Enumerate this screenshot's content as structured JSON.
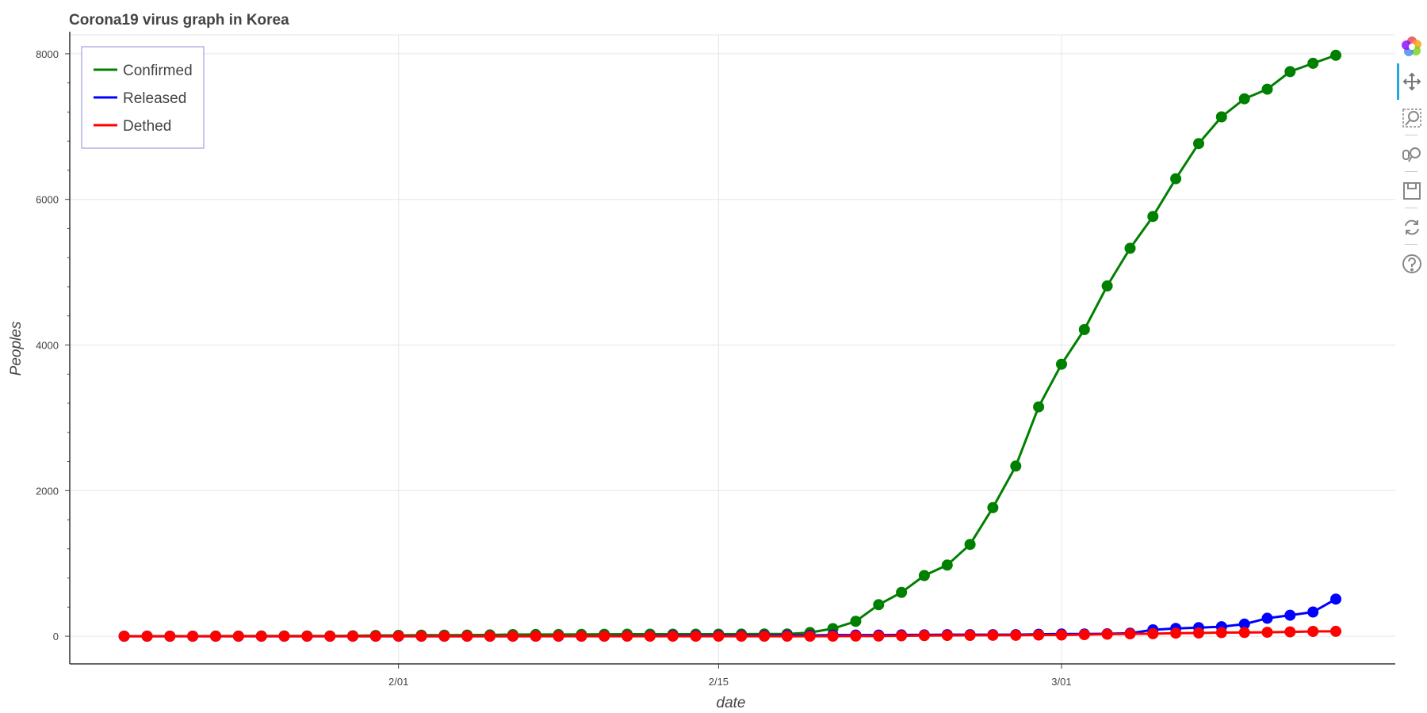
{
  "title": "Corona19 virus graph in Korea",
  "toolbar": {
    "tools": [
      {
        "name": "bokeh-logo-icon",
        "interactable": true
      },
      {
        "name": "pan-tool-icon",
        "interactable": true,
        "active": true
      },
      {
        "name": "box-zoom-tool-icon",
        "interactable": true
      },
      {
        "name": "wheel-zoom-tool-icon",
        "interactable": true
      },
      {
        "name": "save-tool-icon",
        "interactable": true
      },
      {
        "name": "reset-tool-icon",
        "interactable": true
      },
      {
        "name": "help-tool-icon",
        "interactable": true
      }
    ]
  },
  "chart_data": {
    "type": "line",
    "title": "Corona19 virus graph in Korea",
    "xlabel": "date",
    "ylabel": "Peoples",
    "x_tick_labels": [
      "2/01",
      "2/15",
      "3/01"
    ],
    "x_tick_dates": [
      "2020-02-01",
      "2020-02-15",
      "2020-03-01"
    ],
    "x": [
      "2020-01-20",
      "2020-01-21",
      "2020-01-22",
      "2020-01-23",
      "2020-01-24",
      "2020-01-25",
      "2020-01-26",
      "2020-01-27",
      "2020-01-28",
      "2020-01-29",
      "2020-01-30",
      "2020-01-31",
      "2020-02-01",
      "2020-02-02",
      "2020-02-03",
      "2020-02-04",
      "2020-02-05",
      "2020-02-06",
      "2020-02-07",
      "2020-02-08",
      "2020-02-09",
      "2020-02-10",
      "2020-02-11",
      "2020-02-12",
      "2020-02-13",
      "2020-02-14",
      "2020-02-15",
      "2020-02-16",
      "2020-02-17",
      "2020-02-18",
      "2020-02-19",
      "2020-02-20",
      "2020-02-21",
      "2020-02-22",
      "2020-02-23",
      "2020-02-24",
      "2020-02-25",
      "2020-02-26",
      "2020-02-27",
      "2020-02-28",
      "2020-02-29",
      "2020-03-01",
      "2020-03-02",
      "2020-03-03",
      "2020-03-04",
      "2020-03-05",
      "2020-03-06",
      "2020-03-07",
      "2020-03-08",
      "2020-03-09",
      "2020-03-10",
      "2020-03-11",
      "2020-03-12",
      "2020-03-13"
    ],
    "series": [
      {
        "name": "Confirmed",
        "color": "#008000",
        "values": [
          1,
          1,
          1,
          1,
          2,
          2,
          3,
          4,
          4,
          4,
          6,
          11,
          12,
          15,
          15,
          16,
          18,
          23,
          24,
          24,
          25,
          27,
          28,
          28,
          28,
          28,
          28,
          29,
          30,
          31,
          51,
          104,
          204,
          433,
          602,
          833,
          977,
          1261,
          1766,
          2337,
          3150,
          3736,
          4212,
          4812,
          5328,
          5766,
          6284,
          6767,
          7134,
          7382,
          7513,
          7755,
          7869,
          7979
        ]
      },
      {
        "name": "Released",
        "color": "#0000ff",
        "values": [
          0,
          0,
          0,
          0,
          0,
          0,
          0,
          0,
          0,
          0,
          0,
          0,
          0,
          0,
          0,
          0,
          0,
          0,
          1,
          1,
          1,
          2,
          3,
          3,
          7,
          7,
          9,
          9,
          10,
          12,
          12,
          16,
          16,
          16,
          18,
          18,
          22,
          22,
          22,
          22,
          27,
          30,
          30,
          34,
          41,
          88,
          108,
          118,
          130,
          166,
          247,
          288,
          333,
          510
        ]
      },
      {
        "name": "Dethed",
        "color": "#ff0000",
        "values": [
          0,
          0,
          0,
          0,
          0,
          0,
          0,
          0,
          0,
          0,
          0,
          0,
          0,
          0,
          0,
          0,
          0,
          0,
          0,
          0,
          0,
          0,
          0,
          0,
          0,
          0,
          0,
          0,
          0,
          0,
          0,
          1,
          2,
          2,
          6,
          8,
          11,
          12,
          13,
          13,
          16,
          17,
          22,
          28,
          32,
          35,
          42,
          44,
          50,
          51,
          54,
          60,
          66,
          67
        ]
      }
    ],
    "ylim": [
      -380,
      8260
    ],
    "y_ticks": [
      0,
      2000,
      4000,
      6000,
      8000
    ],
    "grid": true,
    "legend_placement": "top-left"
  }
}
